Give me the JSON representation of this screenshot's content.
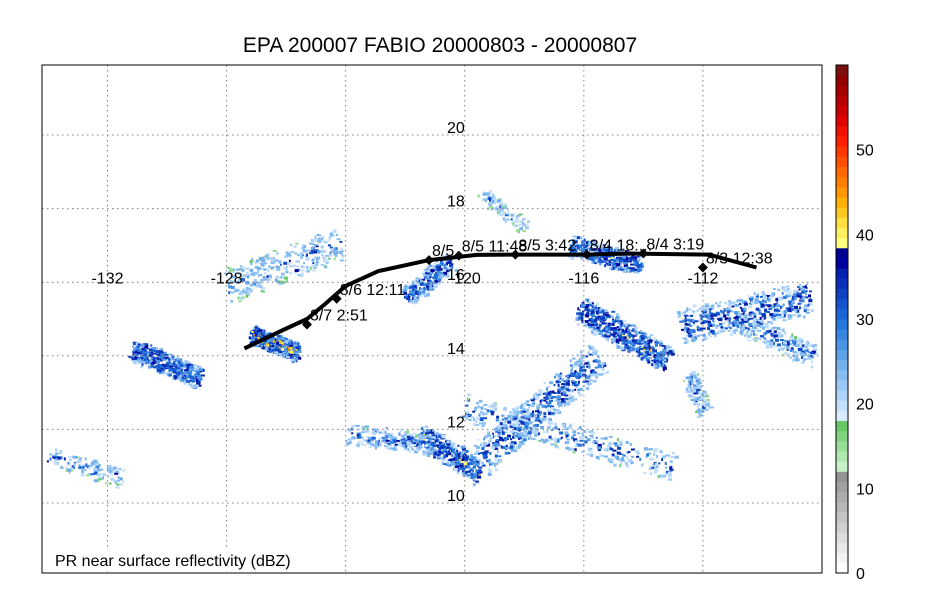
{
  "title": "EPA 200007 FABIO 20000803 - 20000807",
  "caption": "PR near surface reflectivity (dBZ)",
  "map": {
    "lon_range": [
      -134.2,
      -108.0
    ],
    "lat_range": [
      8.1,
      21.9
    ],
    "lon_ticks": [
      -132,
      -128,
      -124,
      -120,
      -116,
      -112
    ],
    "lon_tick_labels": [
      "-132",
      "-128",
      "",
      "-120",
      "-116",
      "-112"
    ],
    "lat_ticks": [
      10,
      12,
      14,
      16,
      18,
      20
    ],
    "lat_tick_labels": [
      "10",
      "12",
      "14",
      "16",
      "18",
      "20"
    ],
    "grid": true,
    "grid_color": "#7f7f7f"
  },
  "track": {
    "line_color": "#000000",
    "path": [
      {
        "lon": -110.2,
        "lat": 16.4
      },
      {
        "lon": -111.8,
        "lat": 16.75
      },
      {
        "lon": -114.5,
        "lat": 16.78
      },
      {
        "lon": -115.9,
        "lat": 16.75
      },
      {
        "lon": -118.3,
        "lat": 16.75
      },
      {
        "lon": -119.6,
        "lat": 16.74
      },
      {
        "lon": -121.2,
        "lat": 16.6
      },
      {
        "lon": -122.9,
        "lat": 16.3
      },
      {
        "lon": -124.0,
        "lat": 15.9
      },
      {
        "lon": -124.7,
        "lat": 15.4
      },
      {
        "lon": -125.3,
        "lat": 15.0
      },
      {
        "lon": -126.1,
        "lat": 14.7
      },
      {
        "lon": -127.4,
        "lat": 14.2
      }
    ],
    "markers": [
      {
        "label": "8/3 12:38",
        "lon": -112.0,
        "lat": 16.4
      },
      {
        "label": "8/4 3:19",
        "lon": -114.0,
        "lat": 16.78
      },
      {
        "label": "8/4 18:...",
        "lon": -115.9,
        "lat": 16.75
      },
      {
        "label": "8/5 3:42",
        "lon": -118.3,
        "lat": 16.75
      },
      {
        "label": "8/5 11:48",
        "lon": -120.2,
        "lat": 16.72
      },
      {
        "label": "8/5",
        "lon": -121.2,
        "lat": 16.6
      },
      {
        "label": "8/6 12:11",
        "lon": -124.3,
        "lat": 15.55
      },
      {
        "label": "8/7 2:51",
        "lon": -125.3,
        "lat": 14.85
      }
    ]
  },
  "colorbar": {
    "range": [
      0,
      60
    ],
    "tick_values": [
      0,
      10,
      20,
      30,
      40,
      50
    ],
    "tick_labels": [
      "0",
      "10",
      "20",
      "30",
      "40",
      "50"
    ],
    "colors": [
      "#ffffff",
      "#f4f4f4",
      "#e8e8e8",
      "#dcdcdc",
      "#d0d0d0",
      "#c4c4c4",
      "#b8b8b8",
      "#acacac",
      "#a0a0a0",
      "#949494",
      "#c8f0c8",
      "#b0e8b0",
      "#98de98",
      "#80d480",
      "#68c868",
      "#d8ecff",
      "#c4e0ff",
      "#b0d4fa",
      "#9cc8f5",
      "#88bcf0",
      "#74b0ec",
      "#60a2e8",
      "#4c94e4",
      "#3886e0",
      "#2478dc",
      "#1a66d6",
      "#1454cc",
      "#0e42c2",
      "#0830b8",
      "#0020ae",
      "#0000a0",
      "#000090",
      "#ffff80",
      "#fff060",
      "#ffe040",
      "#ffc820",
      "#ffb000",
      "#ff9800",
      "#ff8000",
      "#ff6800",
      "#ff5000",
      "#ff3800",
      "#ff2000",
      "#f01000",
      "#e00000",
      "#cc0000",
      "#b80000",
      "#a40000",
      "#900000",
      "#7c1010"
    ]
  },
  "echo_bands": [
    {
      "from": [
        -131.2,
        14.2
      ],
      "to": [
        -128.9,
        13.4
      ],
      "width": 0.55,
      "count": 420,
      "intensity": 0.55
    },
    {
      "from": [
        -127.2,
        14.6
      ],
      "to": [
        -125.6,
        14.1
      ],
      "width": 0.45,
      "count": 380,
      "intensity": 0.75
    },
    {
      "from": [
        -128.0,
        15.9
      ],
      "to": [
        -124.2,
        17.1
      ],
      "width": 0.9,
      "count": 320,
      "intensity": 0.3
    },
    {
      "from": [
        -122.0,
        15.6
      ],
      "to": [
        -120.5,
        16.6
      ],
      "width": 0.55,
      "count": 260,
      "intensity": 0.45
    },
    {
      "from": [
        -116.5,
        17.0
      ],
      "to": [
        -114.1,
        16.5
      ],
      "width": 0.55,
      "count": 320,
      "intensity": 0.6
    },
    {
      "from": [
        -116.2,
        15.3
      ],
      "to": [
        -113.2,
        13.9
      ],
      "width": 0.7,
      "count": 520,
      "intensity": 0.6
    },
    {
      "from": [
        -112.8,
        14.8
      ],
      "to": [
        -108.4,
        15.6
      ],
      "width": 0.9,
      "count": 480,
      "intensity": 0.45
    },
    {
      "from": [
        -115.5,
        14.0
      ],
      "to": [
        -119.5,
        11.2
      ],
      "width": 0.9,
      "count": 560,
      "intensity": 0.45
    },
    {
      "from": [
        -121.5,
        11.9
      ],
      "to": [
        -119.5,
        10.8
      ],
      "width": 0.6,
      "count": 340,
      "intensity": 0.65
    },
    {
      "from": [
        -124.0,
        11.9
      ],
      "to": [
        -121.0,
        11.6
      ],
      "width": 0.5,
      "count": 260,
      "intensity": 0.35
    },
    {
      "from": [
        -120.0,
        12.6
      ],
      "to": [
        -113.0,
        11.0
      ],
      "width": 0.7,
      "count": 360,
      "intensity": 0.35
    },
    {
      "from": [
        -112.5,
        13.5
      ],
      "to": [
        -112.0,
        12.5
      ],
      "width": 0.5,
      "count": 140,
      "intensity": 0.3
    },
    {
      "from": [
        -134.0,
        11.3
      ],
      "to": [
        -131.5,
        10.7
      ],
      "width": 0.5,
      "count": 120,
      "intensity": 0.3
    },
    {
      "from": [
        -119.5,
        18.5
      ],
      "to": [
        -118.0,
        17.5
      ],
      "width": 0.4,
      "count": 90,
      "intensity": 0.25
    },
    {
      "from": [
        -111.0,
        15.0
      ],
      "to": [
        -108.3,
        14.0
      ],
      "width": 0.6,
      "count": 240,
      "intensity": 0.35
    }
  ]
}
